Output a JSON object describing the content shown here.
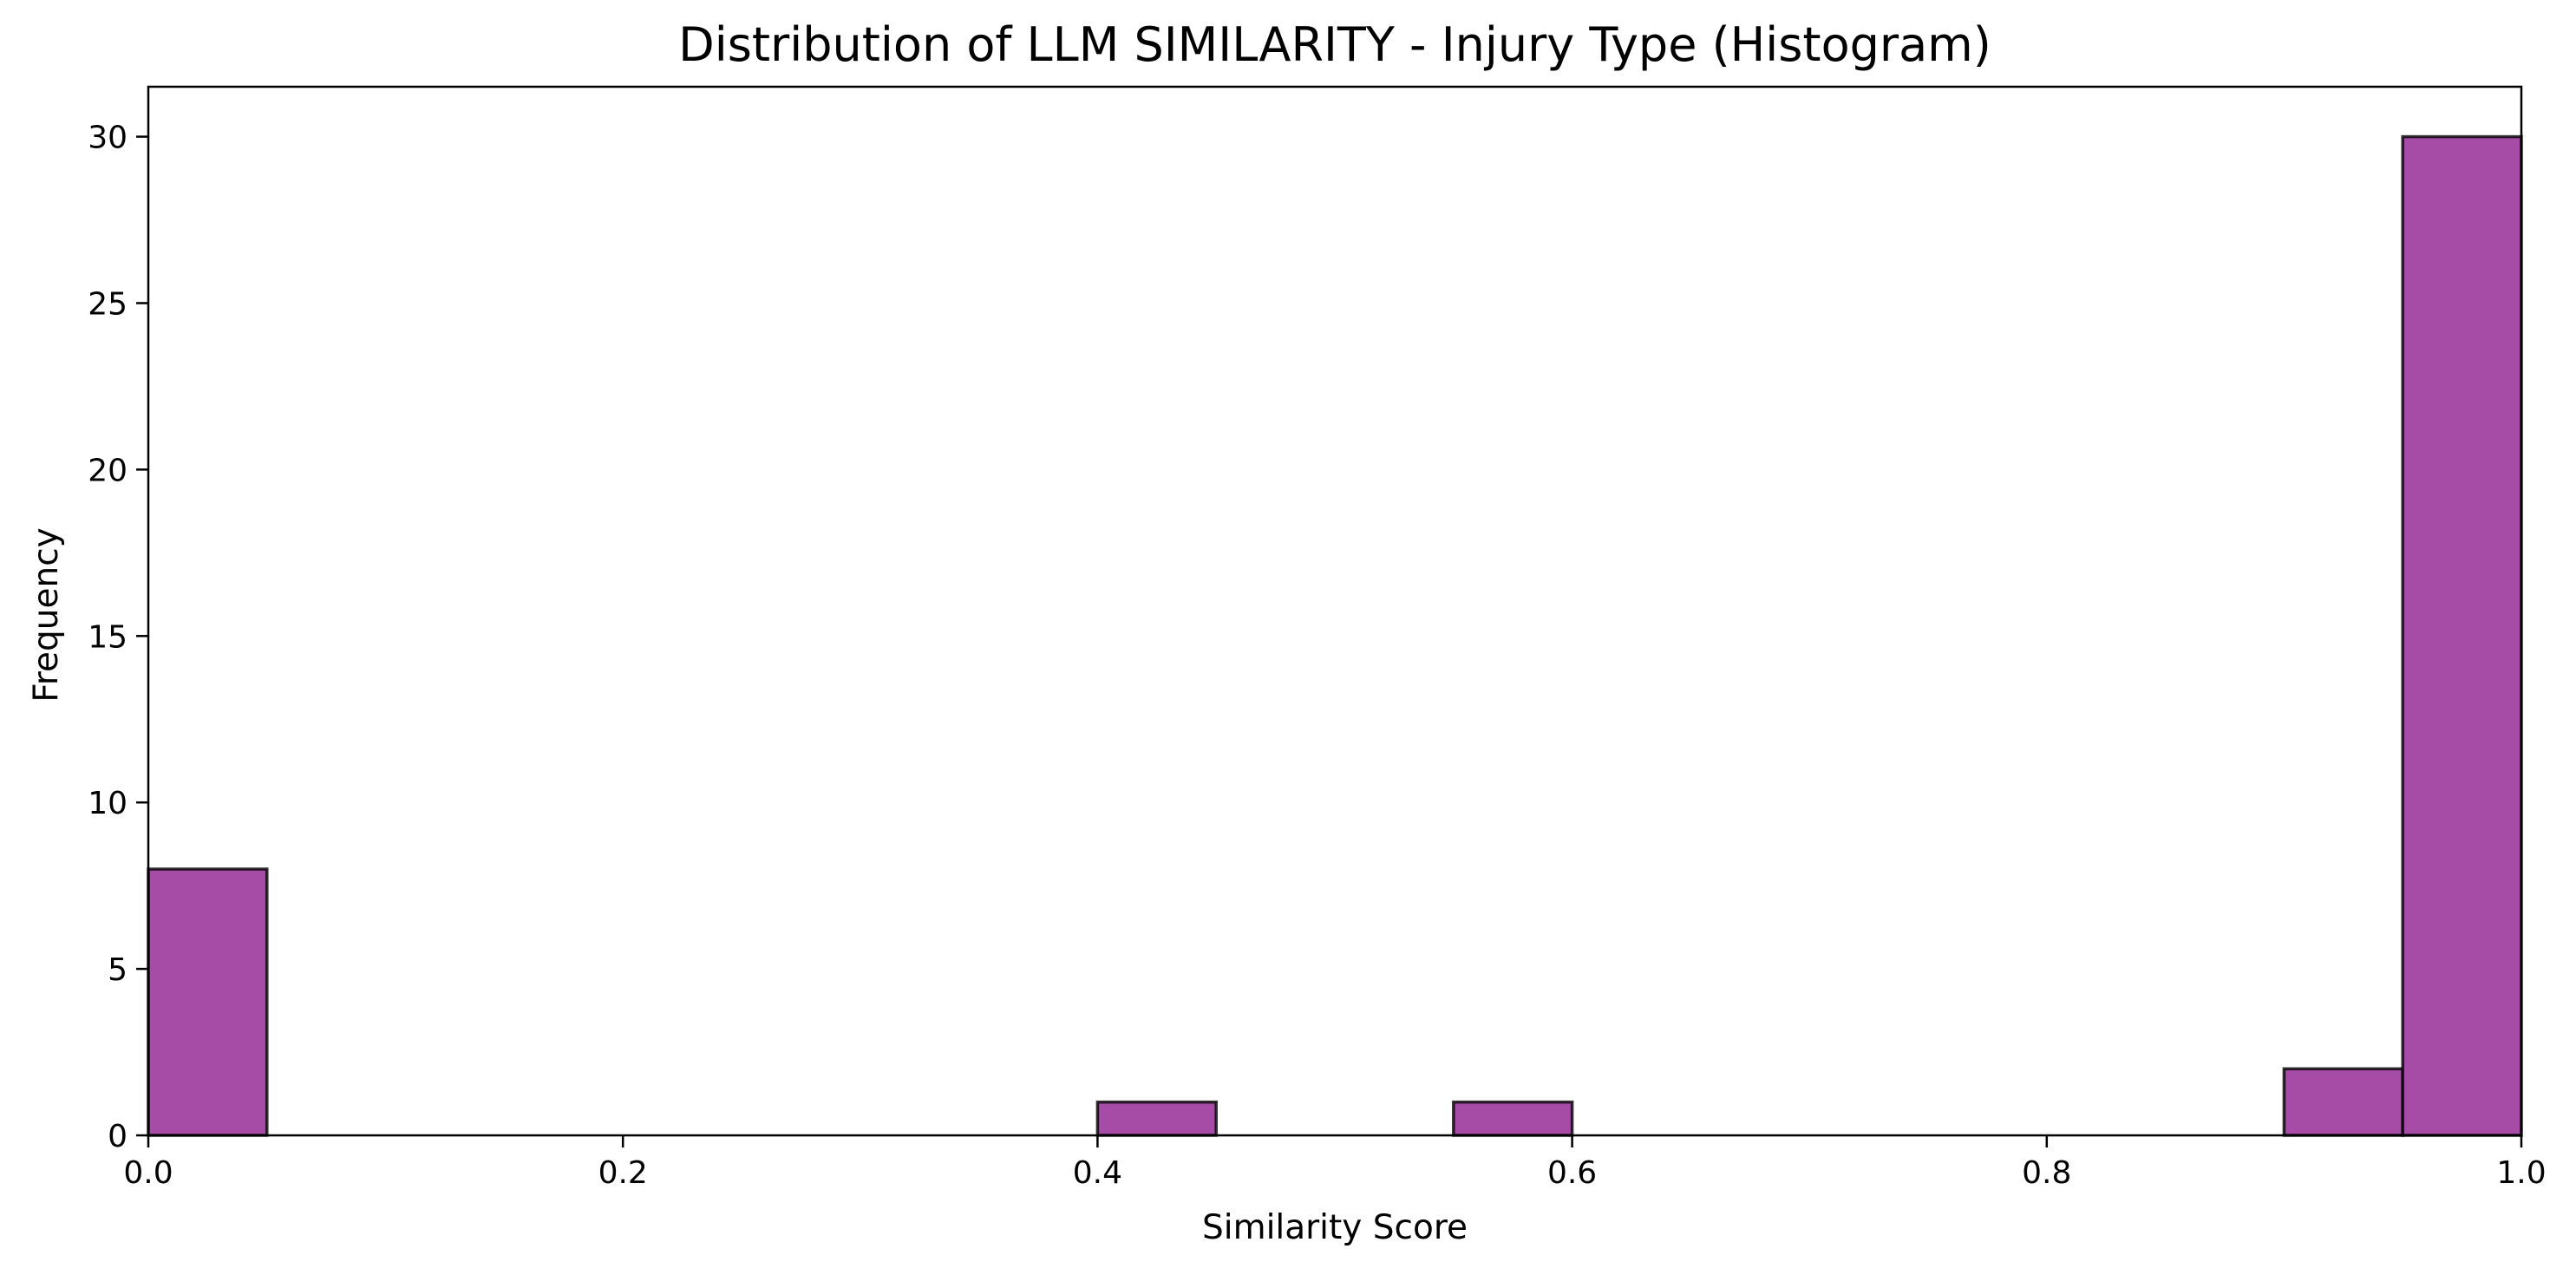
{
  "chart_data": {
    "type": "bar",
    "title": "Distribution of LLM SIMILARITY - Injury Type (Histogram)",
    "xlabel": "Similarity Score",
    "ylabel": "Frequency",
    "xlim": [
      0.0,
      1.0
    ],
    "ylim": [
      0,
      31.5
    ],
    "x_ticks": [
      {
        "value": 0.0,
        "label": "0.0"
      },
      {
        "value": 0.2,
        "label": "0.2"
      },
      {
        "value": 0.4,
        "label": "0.4"
      },
      {
        "value": 0.6,
        "label": "0.6"
      },
      {
        "value": 0.8,
        "label": "0.8"
      },
      {
        "value": 1.0,
        "label": "1.0"
      }
    ],
    "y_ticks": [
      {
        "value": 0,
        "label": "0"
      },
      {
        "value": 5,
        "label": "5"
      },
      {
        "value": 10,
        "label": "10"
      },
      {
        "value": 15,
        "label": "15"
      },
      {
        "value": 20,
        "label": "20"
      },
      {
        "value": 25,
        "label": "25"
      },
      {
        "value": 30,
        "label": "30"
      }
    ],
    "bins": [
      {
        "start": 0.0,
        "end": 0.05,
        "count": 8
      },
      {
        "start": 0.4,
        "end": 0.45,
        "count": 1
      },
      {
        "start": 0.55,
        "end": 0.6,
        "count": 1
      },
      {
        "start": 0.9,
        "end": 0.95,
        "count": 2
      },
      {
        "start": 0.95,
        "end": 1.0,
        "count": 30
      }
    ],
    "bar_color": "#a64ca6",
    "edge_color": "#000000",
    "grid": false,
    "legend": "none"
  }
}
